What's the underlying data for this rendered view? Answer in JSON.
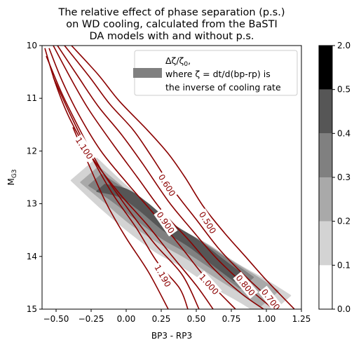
{
  "chart_data": {
    "type": "contour",
    "title_lines": [
      "The relative effect of phase separation (p.s.)",
      "on WD cooling, calculated from the BaSTI",
      "DA models with and without p.s."
    ],
    "xlabel": "BP3 - RP3",
    "ylabel_main": "M",
    "ylabel_sub": "G3",
    "xlim": [
      -0.6,
      1.25
    ],
    "ylim": [
      15,
      10
    ],
    "xticks": [
      -0.5,
      -0.25,
      0.0,
      0.25,
      0.5,
      0.75,
      1.0,
      1.25
    ],
    "xtick_labels": [
      "−0.50",
      "−0.25",
      "0.00",
      "0.25",
      "0.50",
      "0.75",
      "1.00",
      "1.25"
    ],
    "yticks": [
      10,
      11,
      12,
      13,
      14,
      15
    ],
    "ytick_labels": [
      "10",
      "11",
      "12",
      "13",
      "14",
      "15"
    ],
    "legend": {
      "placement": "upper-right",
      "line1": "Δζ/ζ",
      "line1_sub": "0",
      "line1_end": ",",
      "line2": "where ζ = dt/d(bp-rp) is",
      "line3": "the inverse of cooling rate",
      "swatch_color": "#808080"
    },
    "contour_color": "#8b0000",
    "contour_levels": [
      0.5,
      0.6,
      0.7,
      0.8,
      0.9,
      1.0,
      1.1,
      1.19,
      1.3
    ],
    "contour_label_texts": [
      "0.500",
      "0.600",
      "0.700",
      "0.800",
      "0.900",
      "1.000",
      "1.100",
      "1.190"
    ],
    "contour_labels": [
      {
        "text": "0.500",
        "x": 0.58,
        "y": 13.36,
        "angle": 58
      },
      {
        "text": "0.600",
        "x": 0.29,
        "y": 12.65,
        "angle": 58
      },
      {
        "text": "0.700",
        "x": 1.03,
        "y": 14.82,
        "angle": 52
      },
      {
        "text": "0.800",
        "x": 0.85,
        "y": 14.55,
        "angle": 50
      },
      {
        "text": "0.900",
        "x": 0.28,
        "y": 13.36,
        "angle": 55
      },
      {
        "text": "1.000",
        "x": 0.59,
        "y": 14.53,
        "angle": 48
      },
      {
        "text": "1.100",
        "x": -0.3,
        "y": 11.95,
        "angle": 57
      },
      {
        "text": "1.190",
        "x": 0.26,
        "y": 14.37,
        "angle": 60
      }
    ],
    "contours": [
      {
        "level": 0.5,
        "points": [
          [
            -0.39,
            10.0
          ],
          [
            -0.2,
            10.55
          ],
          [
            -0.05,
            11.05
          ],
          [
            0.15,
            11.6
          ],
          [
            0.3,
            12.05
          ],
          [
            0.42,
            12.5
          ],
          [
            0.55,
            13.05
          ],
          [
            0.7,
            13.55
          ],
          [
            0.85,
            14.0
          ],
          [
            1.0,
            14.45
          ],
          [
            1.2,
            15.0
          ]
        ]
      },
      {
        "level": 0.6,
        "points": [
          [
            -0.44,
            10.0
          ],
          [
            -0.26,
            10.6
          ],
          [
            -0.12,
            11.1
          ],
          [
            0.05,
            11.6
          ],
          [
            0.18,
            12.1
          ],
          [
            0.34,
            12.75
          ],
          [
            0.5,
            13.3
          ],
          [
            0.66,
            13.85
          ],
          [
            0.82,
            14.3
          ],
          [
            1.0,
            14.75
          ],
          [
            1.1,
            15.0
          ]
        ]
      },
      {
        "level": 0.7,
        "points": [
          [
            -0.49,
            10.0
          ],
          [
            -0.34,
            10.6
          ],
          [
            -0.2,
            11.15
          ],
          [
            -0.03,
            11.7
          ],
          [
            0.12,
            12.25
          ],
          [
            0.3,
            12.95
          ],
          [
            0.47,
            13.5
          ],
          [
            0.65,
            14.05
          ],
          [
            0.85,
            14.55
          ],
          [
            1.05,
            15.0
          ]
        ]
      },
      {
        "level": 0.8,
        "points": [
          [
            -0.52,
            10.0
          ],
          [
            -0.4,
            10.6
          ],
          [
            -0.27,
            11.2
          ],
          [
            -0.1,
            11.85
          ],
          [
            0.08,
            12.5
          ],
          [
            0.26,
            13.15
          ],
          [
            0.45,
            13.7
          ],
          [
            0.63,
            14.25
          ],
          [
            0.82,
            14.7
          ],
          [
            0.98,
            15.0
          ]
        ]
      },
      {
        "level": 0.9,
        "points": [
          [
            -0.55,
            10.05
          ],
          [
            -0.46,
            10.65
          ],
          [
            -0.34,
            11.3
          ],
          [
            -0.18,
            12.0
          ],
          [
            0.02,
            12.65
          ],
          [
            0.2,
            13.2
          ],
          [
            0.4,
            13.85
          ],
          [
            0.58,
            14.45
          ],
          [
            0.78,
            15.0
          ]
        ]
      },
      {
        "level": 1.0,
        "points": [
          [
            -0.58,
            10.05
          ],
          [
            -0.5,
            10.75
          ],
          [
            -0.4,
            11.4
          ],
          [
            -0.25,
            12.1
          ],
          [
            -0.05,
            12.8
          ],
          [
            0.15,
            13.4
          ],
          [
            0.33,
            14.0
          ],
          [
            0.5,
            14.55
          ],
          [
            0.62,
            15.0
          ]
        ]
      },
      {
        "level": 1.1,
        "points": [
          [
            -0.57,
            10.2
          ],
          [
            -0.46,
            10.9
          ],
          [
            -0.33,
            11.6
          ],
          [
            -0.18,
            12.35
          ],
          [
            0.0,
            13.05
          ],
          [
            0.2,
            13.75
          ],
          [
            0.4,
            14.35
          ],
          [
            0.52,
            15.0
          ]
        ]
      },
      {
        "level": 1.19,
        "points": [
          [
            -0.52,
            10.6
          ],
          [
            -0.4,
            11.3
          ],
          [
            -0.26,
            12.05
          ],
          [
            -0.1,
            12.8
          ],
          [
            0.07,
            13.45
          ],
          [
            0.22,
            14.1
          ],
          [
            0.38,
            14.6
          ],
          [
            0.44,
            15.0
          ]
        ]
      },
      {
        "level": 1.3,
        "points": [
          [
            -0.38,
            11.55
          ],
          [
            -0.26,
            12.3
          ],
          [
            -0.14,
            13.0
          ],
          [
            0.0,
            13.65
          ],
          [
            0.16,
            14.3
          ],
          [
            0.3,
            15.0
          ]
        ]
      }
    ],
    "density_bands": [
      {
        "level_min": 0.1,
        "level_max": 0.2,
        "color": "#d3d3d3",
        "half_width": 0.13,
        "spine": [
          [
            -0.3,
            12.35
          ],
          [
            -0.1,
            12.85
          ],
          [
            0.1,
            13.3
          ],
          [
            0.3,
            13.7
          ],
          [
            0.5,
            14.0
          ],
          [
            0.7,
            14.35
          ],
          [
            0.9,
            14.65
          ],
          [
            1.08,
            14.95
          ]
        ]
      },
      {
        "level_min": 0.2,
        "level_max": 0.3,
        "color": "#a9a9a9",
        "half_width": 0.09,
        "spine": [
          [
            -0.26,
            12.45
          ],
          [
            -0.08,
            12.85
          ],
          [
            0.1,
            13.25
          ],
          [
            0.3,
            13.6
          ],
          [
            0.5,
            13.9
          ],
          [
            0.7,
            14.25
          ],
          [
            0.88,
            14.55
          ],
          [
            1.02,
            14.8
          ]
        ]
      },
      {
        "level_min": 0.3,
        "level_max": 0.4,
        "color": "#808080",
        "half_width": 0.065,
        "spine": [
          [
            -0.22,
            12.55
          ],
          [
            -0.05,
            12.85
          ],
          [
            0.12,
            13.2
          ],
          [
            0.3,
            13.55
          ],
          [
            0.5,
            13.85
          ],
          [
            0.7,
            14.2
          ],
          [
            0.86,
            14.5
          ]
        ]
      },
      {
        "level_min": 0.4,
        "level_max": 0.5,
        "color": "#565656",
        "half_width": 0.04,
        "spine": [
          [
            -0.18,
            12.7
          ],
          [
            -0.02,
            12.8
          ],
          [
            0.12,
            13.05
          ],
          [
            0.3,
            13.45
          ],
          [
            0.48,
            13.75
          ],
          [
            0.65,
            14.1
          ],
          [
            0.8,
            14.4
          ]
        ]
      }
    ],
    "colorbar": {
      "boundaries": [
        0.0,
        0.1,
        0.2,
        0.3,
        0.4,
        0.5,
        2.0
      ],
      "labels": [
        "0.0",
        "0.1",
        "0.2",
        "0.3",
        "0.4",
        "0.5",
        "2.0"
      ],
      "colors": [
        "#ffffff",
        "#d3d3d3",
        "#a9a9a9",
        "#808080",
        "#565656",
        "#000000"
      ]
    }
  }
}
